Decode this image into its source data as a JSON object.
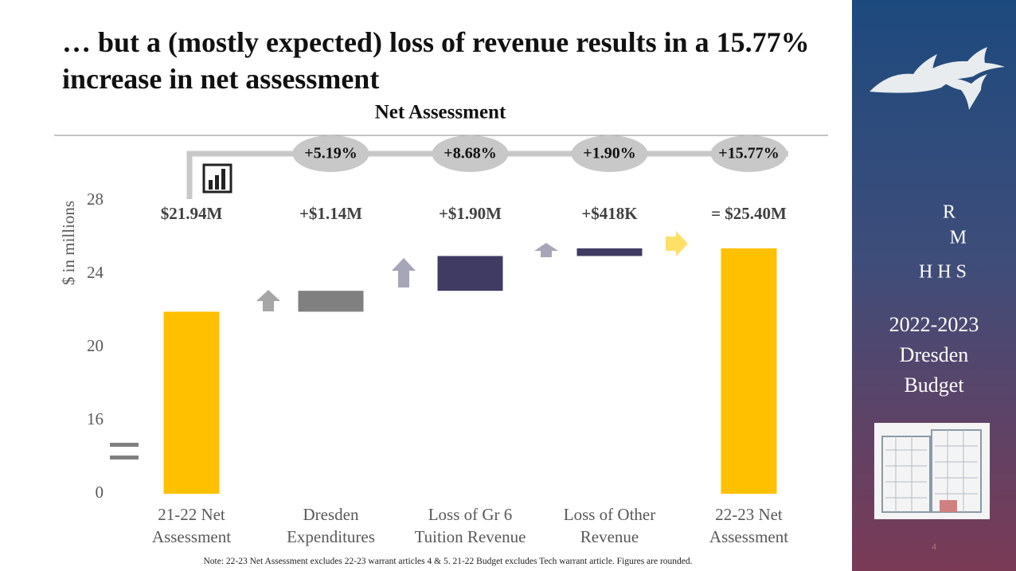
{
  "slide": {
    "title": "… but a (mostly expected) loss of revenue results in a 15.77% increase in net assessment",
    "note": "Note: 22-23 Net Assessment excludes 22-23 warrant articles 4 & 5. 21-22 Budget excludes Tech warrant article. Figures are rounded.",
    "initials": [
      "R",
      "M",
      "H H S"
    ],
    "budget": [
      "2022-2023",
      "Dresden",
      "Budget"
    ],
    "page_number": "4"
  },
  "chart_data": {
    "type": "waterfall",
    "title": "Net Assessment",
    "y_label": "$ in millions",
    "categories": [
      "21-22 Net Assessment",
      "Dresden Expenditures",
      "Loss of Gr 6 Tuition Revenue",
      "Loss of Other Revenue",
      "22-23 Net Assessment"
    ],
    "values": [
      21.94,
      1.14,
      1.9,
      0.418,
      25.4
    ],
    "value_labels": [
      "$21.94M",
      "+$1.14M",
      "+$1.90M",
      "+$418K",
      "= $25.40M"
    ],
    "colors": [
      "#ffc000",
      "#808080",
      "#3f3b62",
      "#3f3b62",
      "#ffc000"
    ],
    "change_labels": [
      "+5.19%",
      "+8.68%",
      "+1.90%",
      "+15.77%"
    ],
    "ylim": [
      0,
      28
    ],
    "yticks": [
      0,
      16,
      20,
      24,
      28
    ],
    "broken_axis": true
  }
}
